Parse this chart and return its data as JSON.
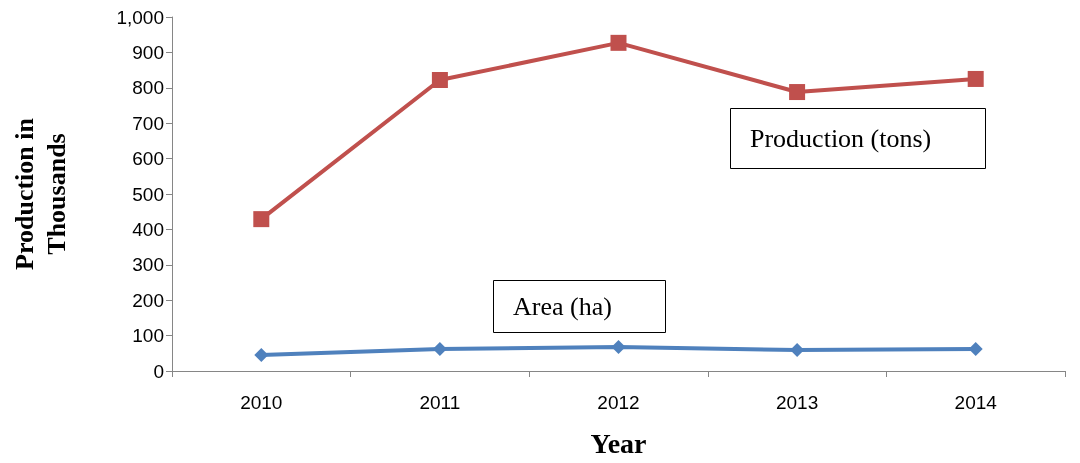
{
  "chart_data": {
    "type": "line",
    "xlabel": "Year",
    "ylabel": "Production in Thousands",
    "categories": [
      "2010",
      "2011",
      "2012",
      "2013",
      "2014"
    ],
    "series": [
      {
        "name": "Production (tons)",
        "color": "#c0504d",
        "marker": "square",
        "values": [
          429,
          822,
          927,
          788,
          825
        ]
      },
      {
        "name": "Area (ha)",
        "color": "#4f81bd",
        "marker": "diamond",
        "values": [
          45,
          62,
          68,
          59,
          62
        ]
      }
    ],
    "ylim": [
      0,
      1000
    ],
    "yticks": [
      0,
      100,
      200,
      300,
      400,
      500,
      600,
      700,
      800,
      900,
      {
        "value": 1000,
        "label": "1,000"
      }
    ],
    "grid": false,
    "legend": false
  }
}
